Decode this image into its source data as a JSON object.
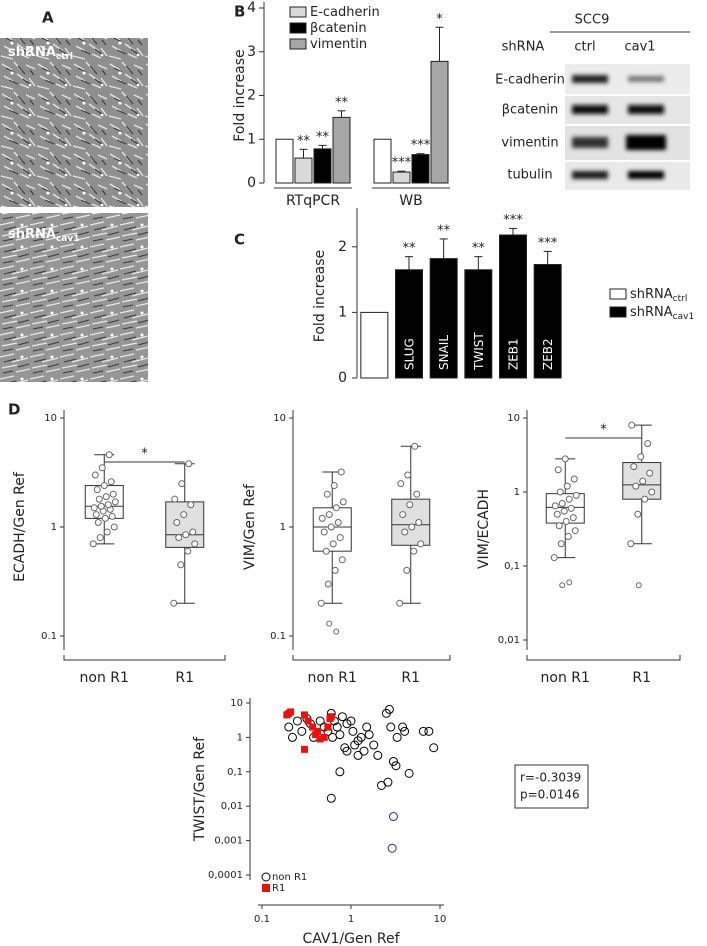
{
  "panel_a": {
    "label": "A",
    "images": [
      {
        "text": "shRNA",
        "sub": "ctrl"
      },
      {
        "text": "shRNA",
        "sub": "cav1"
      }
    ]
  },
  "western_blot": {
    "title": "SCC9",
    "row_header": "shRNA",
    "columns": [
      "ctrl",
      "cav1"
    ],
    "rows": [
      "E-cadherin",
      "βcatenin",
      "vimentin",
      "tubulin"
    ]
  },
  "chart_data": [
    {
      "type": "bar",
      "panel": "B",
      "ylabel": "Fold increase",
      "categories": [
        "RTqPCR",
        "WB"
      ],
      "ylim": [
        0,
        4
      ],
      "yticks": [
        0,
        1,
        2,
        3,
        4
      ],
      "series": [
        {
          "color": "#ffffff",
          "values": [
            1,
            1
          ]
        },
        {
          "name": "E-cadherin",
          "color": "#d9d9d9",
          "values": [
            0.57,
            0.25
          ],
          "errors": [
            0.2,
            0.02
          ],
          "significance": [
            "**",
            "***"
          ]
        },
        {
          "name": "βcatenin",
          "color": "#000000",
          "values": [
            0.78,
            0.65
          ],
          "errors": [
            0.08,
            0.02
          ],
          "significance": [
            "**",
            "***"
          ]
        },
        {
          "name": "vimentin",
          "color": "#a6a6a6",
          "values": [
            1.5,
            2.78
          ],
          "errors": [
            0.15,
            0.78
          ],
          "significance": [
            "**",
            "*"
          ]
        }
      ]
    },
    {
      "type": "bar",
      "panel": "C",
      "ylabel": "Fold increase",
      "categories": [
        null,
        "SLUG",
        "SNAIL",
        "TWIST",
        "ZEB1",
        "ZEB2"
      ],
      "ylim": [
        0,
        2.5
      ],
      "yticks": [
        0,
        1,
        2
      ],
      "series": [
        {
          "name": "shRNA",
          "name_sub": "ctrl",
          "color": "#ffffff",
          "values": [
            1,
            null,
            null,
            null,
            null,
            null
          ]
        },
        {
          "name": "shRNA",
          "name_sub": "cav1",
          "color": "#000000",
          "values": [
            null,
            1.65,
            1.82,
            1.65,
            2.18,
            1.73
          ],
          "errors": [
            null,
            0.2,
            0.3,
            0.2,
            0.1,
            0.2
          ],
          "significance": [
            null,
            "**",
            "**",
            "**",
            "***",
            "***"
          ]
        }
      ]
    },
    {
      "type": "box",
      "panel": "D",
      "ylabel": "ECADH/Gen Ref",
      "log": true,
      "ylim": [
        0.1,
        10
      ],
      "yticks": [
        0.1,
        1,
        10
      ],
      "categories": [
        "non R1",
        "R1"
      ],
      "significance": "*",
      "boxes": [
        {
          "fill": "#ffffff",
          "whislo": 0.7,
          "q1": 1.2,
          "med": 1.55,
          "q3": 2.4,
          "whishi": 4.6,
          "points": [
            0.7,
            0.8,
            0.9,
            1.0,
            1.1,
            1.2,
            1.25,
            1.3,
            1.4,
            1.45,
            1.5,
            1.55,
            1.6,
            1.7,
            1.8,
            1.9,
            2.0,
            2.2,
            2.4,
            2.6,
            3.0,
            3.5,
            4.6
          ]
        },
        {
          "fill": "#e0e0e0",
          "whislo": 0.2,
          "q1": 0.65,
          "med": 0.85,
          "q3": 1.7,
          "whishi": 3.8,
          "points": [
            0.2,
            0.45,
            0.6,
            0.7,
            0.8,
            0.85,
            0.9,
            1.1,
            1.3,
            1.6,
            1.8,
            2.5,
            3.8
          ]
        }
      ]
    },
    {
      "type": "box",
      "ylabel": "VIM/Gen Ref",
      "log": true,
      "ylim": [
        0.1,
        10
      ],
      "yticks": [
        0.1,
        1,
        10
      ],
      "categories": [
        "non R1",
        "R1"
      ],
      "boxes": [
        {
          "fill": "#ffffff",
          "whislo": 0.2,
          "q1": 0.6,
          "med": 1.0,
          "q3": 1.5,
          "whishi": 3.2,
          "points": [
            0.2,
            0.3,
            0.4,
            0.5,
            0.6,
            0.7,
            0.8,
            0.9,
            1.0,
            1.1,
            1.2,
            1.3,
            1.5,
            1.7,
            2.0,
            2.4,
            3.2
          ],
          "outliers": [
            0.13,
            0.11
          ]
        },
        {
          "fill": "#e0e0e0",
          "whislo": 0.2,
          "q1": 0.68,
          "med": 1.05,
          "q3": 1.8,
          "whishi": 5.5,
          "points": [
            0.2,
            0.4,
            0.6,
            0.7,
            0.9,
            1.0,
            1.1,
            1.3,
            1.6,
            2.0,
            2.5,
            3.0,
            5.5
          ]
        }
      ]
    },
    {
      "type": "box",
      "ylabel": "VIM/ECADH",
      "log": true,
      "ylim": [
        0.01,
        10
      ],
      "yticks": [
        {
          "value": 0.01,
          "label": "0,01"
        },
        {
          "value": 0.1,
          "label": "0,1"
        },
        1,
        10
      ],
      "categories": [
        "non R1",
        "R1"
      ],
      "significance": "*",
      "boxes": [
        {
          "fill": "#ffffff",
          "whislo": 0.13,
          "q1": 0.38,
          "med": 0.62,
          "q3": 0.95,
          "whishi": 2.8,
          "points": [
            0.13,
            0.2,
            0.25,
            0.3,
            0.35,
            0.4,
            0.45,
            0.5,
            0.55,
            0.6,
            0.65,
            0.7,
            0.8,
            0.9,
            1.0,
            1.2,
            1.5,
            2.0,
            2.8
          ],
          "outliers": [
            0.055,
            0.06
          ]
        },
        {
          "fill": "#e0e0e0",
          "whislo": 0.2,
          "q1": 0.8,
          "med": 1.25,
          "q3": 2.5,
          "whishi": 8.0,
          "points": [
            0.2,
            0.5,
            0.8,
            1.0,
            1.2,
            1.4,
            1.8,
            2.2,
            3.0,
            4.5,
            8.0
          ],
          "outliers": [
            0.055
          ]
        }
      ]
    },
    {
      "type": "scatter",
      "xlabel": "CAV1/Gen Ref",
      "ylabel": "TWIST/Gen Ref",
      "log": true,
      "xlim": [
        0.1,
        10
      ],
      "ylim": [
        0.0001,
        10
      ],
      "xticks": [
        0.1,
        1,
        10
      ],
      "yticks": [
        {
          "value": 0.0001,
          "label": "0,0001"
        },
        {
          "value": 0.001,
          "label": "0,001"
        },
        {
          "value": 0.01,
          "label": "0,01"
        },
        {
          "value": 0.1,
          "label": "0,1"
        },
        1,
        10
      ],
      "annotations": [
        "r=-0.3039",
        "p=0.0146"
      ],
      "series": [
        {
          "name": "non R1",
          "color": "#000000",
          "marker": "circle",
          "x": [
            0.2,
            0.22,
            0.25,
            0.28,
            0.32,
            0.35,
            0.38,
            0.45,
            0.5,
            0.55,
            0.6,
            0.62,
            0.65,
            0.7,
            0.75,
            0.8,
            0.85,
            0.9,
            1.0,
            1.05,
            1.1,
            1.2,
            1.3,
            1.4,
            1.5,
            1.6,
            1.8,
            2.0,
            2.2,
            2.5,
            2.7,
            2.8,
            3.0,
            3.2,
            3.3,
            3.8,
            4.0,
            4.5,
            6.5,
            7.5,
            8.5,
            0.6,
            0.75,
            1.2,
            0.9,
            2.6
          ],
          "y": [
            2,
            1,
            3,
            1.5,
            3.5,
            2.5,
            1,
            3,
            2,
            1.5,
            5,
            1,
            3,
            2,
            1.2,
            4,
            0.5,
            2.5,
            3,
            1.5,
            0.6,
            0.3,
            1,
            0.4,
            2,
            1.2,
            0.6,
            0.3,
            0.04,
            5,
            6.5,
            2,
            0.2,
            0.15,
            1,
            2,
            1.5,
            0.09,
            1.5,
            1.5,
            0.5,
            0.017,
            0.1,
            0.8,
            0.4,
            0.05
          ]
        },
        {
          "name": "R1",
          "color": "#e8130f",
          "marker": "square",
          "x": [
            0.2,
            0.21,
            0.19,
            0.3,
            0.33,
            0.37,
            0.42,
            0.45,
            0.5,
            0.55,
            0.58,
            0.6,
            0.3,
            0.4
          ],
          "y": [
            5,
            5.5,
            4.5,
            4.5,
            3,
            2,
            1.5,
            0.9,
            1,
            2,
            3.5,
            4,
            0.45,
            1.2
          ]
        },
        {
          "color": "#2b2b9b",
          "marker": "circle",
          "x": [
            3,
            2.9
          ],
          "y": [
            0.005,
            0.0006
          ]
        }
      ]
    }
  ]
}
